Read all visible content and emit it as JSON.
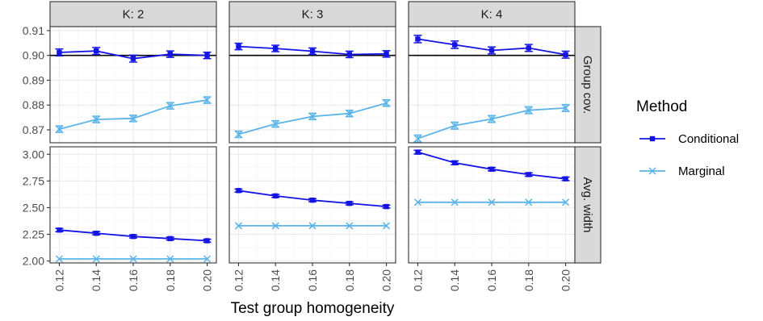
{
  "chart_data": {
    "type": "line",
    "facet_columns": [
      "K: 2",
      "K: 3",
      "K: 4"
    ],
    "facet_rows": [
      "Group cov.",
      "Avg. width"
    ],
    "x": [
      0.12,
      0.14,
      0.16,
      0.18,
      0.2
    ],
    "x_tick_labels": [
      "0.12",
      "0.14",
      "0.16",
      "0.18",
      "0.20"
    ],
    "xlabel": "Test group homogeneity",
    "xlim": [
      0.115,
      0.205
    ],
    "rows": [
      {
        "label": "Group cov.",
        "ylim": [
          0.8648,
          0.9116
        ],
        "y_ticks": [
          0.87,
          0.88,
          0.89,
          0.9,
          0.91
        ],
        "y_tick_labels": [
          "0.87",
          "0.88",
          "0.89",
          "0.90",
          "0.91"
        ],
        "reference_line": 0.9
      },
      {
        "label": "Avg. width",
        "ylim": [
          1.982,
          3.07
        ],
        "y_ticks": [
          2.0,
          2.25,
          2.5,
          2.75,
          3.0
        ],
        "y_tick_labels": [
          "2.00",
          "2.25",
          "2.50",
          "2.75",
          "3.00"
        ]
      }
    ],
    "series": [
      {
        "name": "Conditional",
        "color": "#1414e6",
        "marker": "square",
        "data": {
          "0": {
            "0": {
              "values": [
                0.9012,
                0.9018,
                0.8987,
                0.9005,
                0.9
              ],
              "err": [
                0.0014,
                0.0014,
                0.0014,
                0.0013,
                0.0013
              ]
            },
            "1": {
              "values": [
                0.9036,
                0.9028,
                0.9017,
                0.9004,
                0.9006
              ],
              "err": [
                0.0013,
                0.0013,
                0.0013,
                0.0013,
                0.0013
              ]
            },
            "2": {
              "values": [
                0.9066,
                0.9043,
                0.902,
                0.903,
                0.9003
              ],
              "err": [
                0.0015,
                0.0015,
                0.0014,
                0.0014,
                0.0014
              ]
            }
          },
          "1": {
            "0": {
              "values": [
                2.29,
                2.26,
                2.23,
                2.21,
                2.19
              ],
              "err": [
                0.015,
                0.015,
                0.014,
                0.014,
                0.014
              ]
            },
            "1": {
              "values": [
                2.66,
                2.61,
                2.57,
                2.54,
                2.51
              ],
              "err": [
                0.014,
                0.014,
                0.014,
                0.014,
                0.014
              ]
            },
            "2": {
              "values": [
                3.02,
                2.92,
                2.86,
                2.81,
                2.77
              ],
              "err": [
                0.018,
                0.017,
                0.016,
                0.016,
                0.016
              ]
            }
          }
        }
      },
      {
        "name": "Marginal",
        "color": "#5ab4ea",
        "marker": "cross",
        "data": {
          "0": {
            "0": {
              "values": [
                0.8703,
                0.8742,
                0.8746,
                0.8797,
                0.882
              ],
              "err": [
                0.0013,
                0.0013,
                0.0013,
                0.0013,
                0.0013
              ]
            },
            "1": {
              "values": [
                0.8682,
                0.8724,
                0.8754,
                0.8766,
                0.8808
              ],
              "err": [
                0.0013,
                0.0013,
                0.0013,
                0.0013,
                0.0013
              ]
            },
            "2": {
              "values": [
                0.8665,
                0.8717,
                0.8744,
                0.8779,
                0.8788
              ],
              "err": [
                0.0014,
                0.0014,
                0.0014,
                0.0014,
                0.0014
              ]
            }
          },
          "1": {
            "0": {
              "values": [
                2.02,
                2.02,
                2.02,
                2.02,
                2.02
              ],
              "err": [
                0,
                0,
                0,
                0,
                0
              ]
            },
            "1": {
              "values": [
                2.33,
                2.33,
                2.33,
                2.33,
                2.33
              ],
              "err": [
                0,
                0,
                0,
                0,
                0
              ]
            },
            "2": {
              "values": [
                2.55,
                2.55,
                2.55,
                2.55,
                2.55
              ],
              "err": [
                0,
                0,
                0,
                0,
                0
              ]
            }
          }
        }
      }
    ],
    "legend": {
      "title": "Method",
      "placement": "right",
      "items": [
        "Conditional",
        "Marginal"
      ]
    },
    "grid": true,
    "theme": {
      "panel_border": "#333333",
      "strip_fill": "#d9d9d9",
      "grid_major": "#ebebeb",
      "grid_minor": "#f5f5f5"
    }
  }
}
